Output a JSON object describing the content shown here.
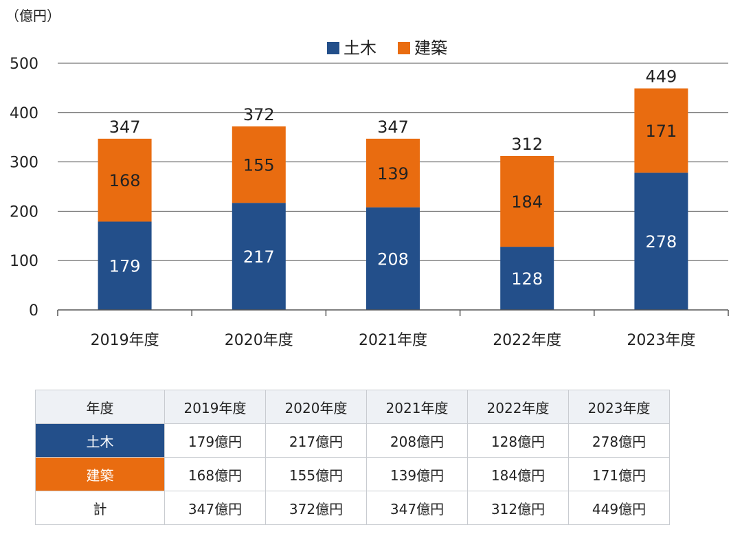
{
  "chart_data": {
    "type": "bar",
    "stacked": true,
    "unit_label": "（億円）",
    "categories": [
      "2019年度",
      "2020年度",
      "2021年度",
      "2022年度",
      "2023年度"
    ],
    "series": [
      {
        "name": "土木",
        "color": "#234f8a",
        "values": [
          179,
          217,
          208,
          128,
          278
        ]
      },
      {
        "name": "建築",
        "color": "#e96c10",
        "values": [
          168,
          155,
          139,
          184,
          171
        ]
      }
    ],
    "totals": [
      347,
      372,
      347,
      312,
      449
    ],
    "ylim": [
      0,
      500
    ],
    "yticks": [
      0,
      100,
      200,
      300,
      400,
      500
    ],
    "grid": true,
    "legend_position": "top-center"
  },
  "table": {
    "header": [
      "年度",
      "2019年度",
      "2020年度",
      "2021年度",
      "2022年度",
      "2023年度"
    ],
    "rows": [
      {
        "label": "土木",
        "cells": [
          "179億円",
          "217億円",
          "208億円",
          "128億円",
          "278億円"
        ]
      },
      {
        "label": "建築",
        "cells": [
          "168億円",
          "155億円",
          "139億円",
          "184億円",
          "171億円"
        ]
      },
      {
        "label": "計",
        "cells": [
          "347億円",
          "372億円",
          "347億円",
          "312億円",
          "449億円"
        ]
      }
    ]
  }
}
